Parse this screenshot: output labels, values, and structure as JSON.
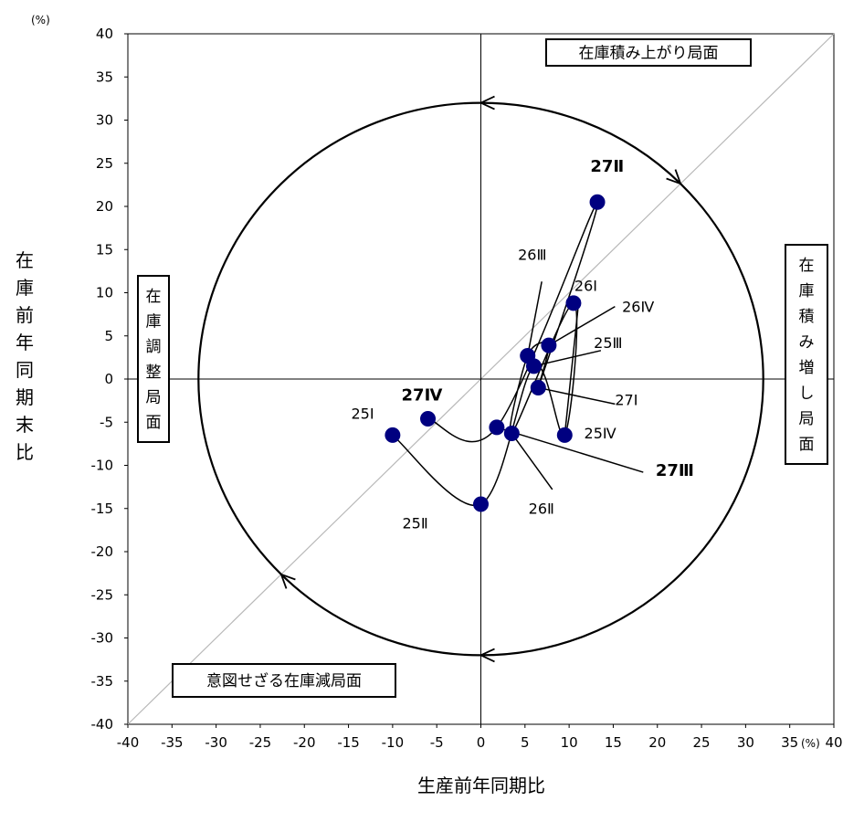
{
  "chart_data": {
    "type": "scatter",
    "xlabel": "生産前年同期比",
    "ylabel": "在庫前年同期末比",
    "x_unit": "(%)",
    "y_unit": "(%)",
    "xlim": [
      -40,
      40
    ],
    "ylim": [
      -40,
      40
    ],
    "xticks": [
      "-40",
      "-35",
      "-30",
      "-25",
      "-20",
      "-15",
      "-10",
      "-5",
      "0",
      "5",
      "10",
      "15",
      "20",
      "25",
      "30",
      "35",
      "40"
    ],
    "yticks": [
      "40",
      "35",
      "30",
      "25",
      "20",
      "15",
      "10",
      "5",
      "0",
      "-5",
      "-10",
      "-15",
      "-20",
      "-25",
      "-30",
      "-35",
      "-40"
    ],
    "points": [
      {
        "label": "25Ⅰ",
        "x": -10.0,
        "y": -6.5,
        "bold": false
      },
      {
        "label": "25Ⅱ",
        "x": 0.0,
        "y": -14.5,
        "bold": false
      },
      {
        "label": "25Ⅲ",
        "x": 6.0,
        "y": 1.5,
        "bold": false
      },
      {
        "label": "25Ⅳ",
        "x": 9.5,
        "y": -6.5,
        "bold": false
      },
      {
        "label": "26Ⅰ",
        "x": 10.5,
        "y": 8.8,
        "bold": false
      },
      {
        "label": "26Ⅱ",
        "x": 3.5,
        "y": -6.3,
        "bold": false
      },
      {
        "label": "26Ⅲ",
        "x": 5.3,
        "y": 2.7,
        "bold": false
      },
      {
        "label": "26Ⅳ",
        "x": 7.7,
        "y": 3.9,
        "bold": false
      },
      {
        "label": "27Ⅰ",
        "x": 6.5,
        "y": -1.0,
        "bold": false
      },
      {
        "label": "27Ⅱ",
        "x": 13.2,
        "y": 20.5,
        "bold": true
      },
      {
        "label": "27Ⅲ",
        "x": 1.8,
        "y": -5.6,
        "bold": true
      },
      {
        "label": "27Ⅳ",
        "x": -6.0,
        "y": -4.6,
        "bold": true
      }
    ],
    "point_color": "#000080",
    "reference_line": "y = x",
    "cycle_circle_radius": 32,
    "phases": [
      {
        "id": "accumulation",
        "text": "在庫積み上がり局面"
      },
      {
        "id": "build-up",
        "text": "在庫積み増し局面"
      },
      {
        "id": "adjustment",
        "text": "在庫調整局面"
      },
      {
        "id": "unintended-decrease",
        "text": "意図せざる在庫減局面"
      }
    ]
  }
}
